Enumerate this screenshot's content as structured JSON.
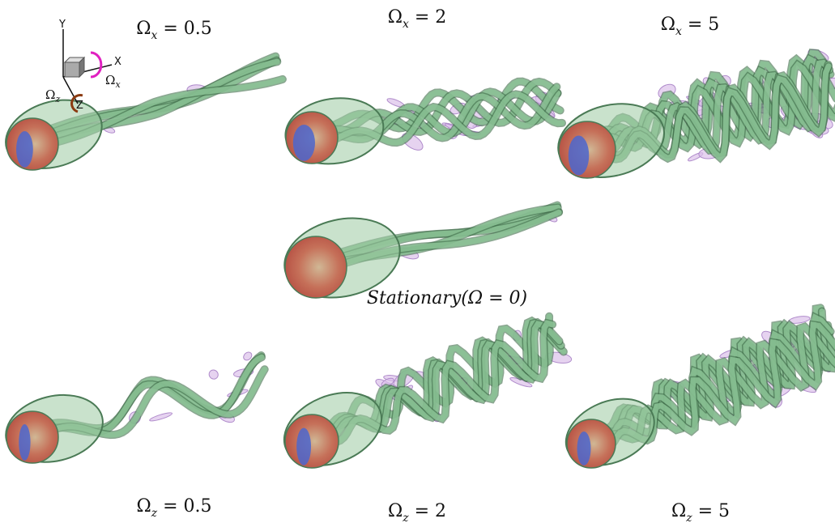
{
  "panels": [
    {
      "label": {
        "symbol": "Ω",
        "sub": "x",
        "rest": " = 0.5"
      }
    },
    {
      "label": {
        "symbol": "Ω",
        "sub": "x",
        "rest": " = 2"
      }
    },
    {
      "label": {
        "symbol": "Ω",
        "sub": "x",
        "rest": " = 5"
      }
    },
    {
      "label": {
        "text": "Stationary(Ω = 0)"
      }
    },
    {
      "label": {
        "symbol": "Ω",
        "sub": "z",
        "rest": " = 0.5"
      }
    },
    {
      "label": {
        "symbol": "Ω",
        "sub": "z",
        "rest": " = 2"
      }
    },
    {
      "label": {
        "symbol": "Ω",
        "sub": "z",
        "rest": " = 5"
      }
    }
  ],
  "axes_icon": {
    "y": "Y",
    "x": "X",
    "z": "Z",
    "omega_z": {
      "symbol": "Ω",
      "sub": "z"
    },
    "omega_x": {
      "symbol": "Ω",
      "sub": "x"
    }
  }
}
